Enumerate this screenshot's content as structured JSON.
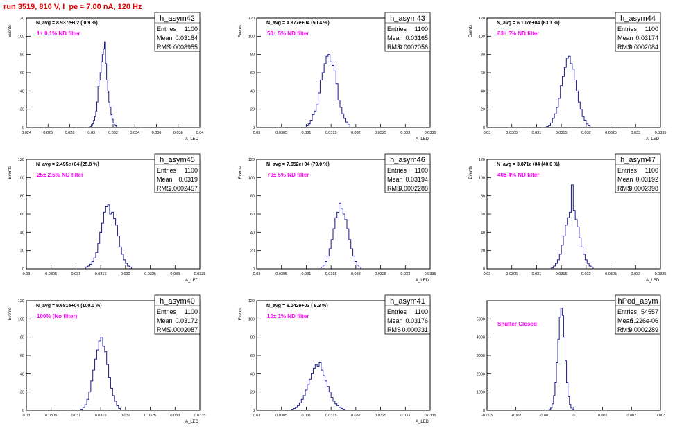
{
  "header": {
    "title": "run 3519,   810 V, I_pe ≈ 7.00 nA, 120 Hz"
  },
  "chart_data": [
    {
      "type": "histogram",
      "name": "h_asym42",
      "ylabel": "Events",
      "xlabel": "A_LED",
      "ylim": [
        0,
        120
      ],
      "yticks": [
        0,
        20,
        40,
        60,
        80,
        100,
        120
      ],
      "xlim": [
        0.024,
        0.04
      ],
      "xticks": [
        0.024,
        0.026,
        0.028,
        0.03,
        0.032,
        0.034,
        0.036,
        0.038,
        0.04
      ],
      "xticklabels": [
        "0.024",
        "0.026",
        "0.028",
        "0.03",
        "0.032",
        "0.034",
        "0.036",
        "0.038",
        "0.04"
      ],
      "stats": {
        "entries": "1100",
        "mean": "0.03184",
        "rms": "0.0008955"
      },
      "navg": "N_avg = 8.937e+02 ( 0.9 %)",
      "filter": "1± 0.1% ND filter",
      "bin_start": 0.0299,
      "bin_width": 0.0001,
      "counts": [
        1,
        2,
        4,
        8,
        12,
        18,
        28,
        45,
        52,
        60,
        72,
        80,
        86,
        94,
        70,
        52,
        40,
        28,
        22,
        14,
        9,
        5,
        3,
        2
      ]
    },
    {
      "type": "histogram",
      "name": "h_asym43",
      "ylabel": "Events",
      "xlabel": "A_LED",
      "ylim": [
        0,
        120
      ],
      "yticks": [
        0,
        20,
        40,
        60,
        80,
        100,
        120
      ],
      "xlim": [
        0.03,
        0.0335
      ],
      "xticks": [
        0.03,
        0.0305,
        0.031,
        0.0315,
        0.032,
        0.0325,
        0.033,
        0.0335
      ],
      "xticklabels": [
        "0.03",
        "0.0305",
        "0.031",
        "0.0315",
        "0.032",
        "0.0325",
        "0.033",
        "0.0335"
      ],
      "stats": {
        "entries": "1100",
        "mean": "0.03165",
        "rms": "0.0002056"
      },
      "navg": "N_avg = 4.877e+04 (50.4 %)",
      "filter": "50± 5% ND filter",
      "bin_start": 0.031,
      "bin_width": 4e-05,
      "counts": [
        2,
        4,
        8,
        14,
        18,
        25,
        38,
        52,
        60,
        70,
        78,
        80,
        72,
        68,
        62,
        48,
        30,
        22,
        15,
        10,
        6,
        3
      ]
    },
    {
      "type": "histogram",
      "name": "h_asym44",
      "ylabel": "Events",
      "xlabel": "A_LED",
      "ylim": [
        0,
        120
      ],
      "yticks": [
        0,
        20,
        40,
        60,
        80,
        100,
        120
      ],
      "xlim": [
        0.03,
        0.0335
      ],
      "xticks": [
        0.03,
        0.0305,
        0.031,
        0.0315,
        0.032,
        0.0325,
        0.033,
        0.0335
      ],
      "xticklabels": [
        "0.03",
        "0.0305",
        "0.031",
        "0.0315",
        "0.032",
        "0.0325",
        "0.033",
        "0.0335"
      ],
      "stats": {
        "entries": "1100",
        "mean": "0.03174",
        "rms": "0.0002084"
      },
      "navg": "N_avg = 6.107e+04 (63.1 %)",
      "filter": "63± 5% ND filter",
      "bin_start": 0.0312,
      "bin_width": 4e-05,
      "counts": [
        1,
        2,
        5,
        10,
        15,
        22,
        32,
        46,
        56,
        66,
        76,
        78,
        70,
        64,
        52,
        40,
        28,
        20,
        12,
        8,
        4,
        2
      ]
    },
    {
      "type": "histogram",
      "name": "h_asym45",
      "ylabel": "Events",
      "xlabel": "A_LED",
      "ylim": [
        0,
        120
      ],
      "yticks": [
        0,
        20,
        40,
        60,
        80,
        100,
        120
      ],
      "xlim": [
        0.03,
        0.0335
      ],
      "xticks": [
        0.03,
        0.0305,
        0.031,
        0.0315,
        0.032,
        0.0325,
        0.033,
        0.0335
      ],
      "xticklabels": [
        "0.03",
        "0.0305",
        "0.031",
        "0.0315",
        "0.032",
        "0.0325",
        "0.033",
        "0.0335"
      ],
      "stats": {
        "entries": "1100",
        "mean": "0.0319",
        "rms": "0.0002457"
      },
      "navg": "N_avg = 2.495e+04 (25.8 %)",
      "filter": "25± 2.5% ND filter",
      "bin_start": 0.0312,
      "bin_width": 4e-05,
      "counts": [
        2,
        3,
        5,
        8,
        12,
        18,
        28,
        40,
        50,
        62,
        68,
        70,
        60,
        62,
        55,
        48,
        36,
        24,
        16,
        10,
        6,
        3,
        2
      ]
    },
    {
      "type": "histogram",
      "name": "h_asym46",
      "ylabel": "Events",
      "xlabel": "A_LED",
      "ylim": [
        0,
        120
      ],
      "yticks": [
        0,
        20,
        40,
        60,
        80,
        100,
        120
      ],
      "xlim": [
        0.03,
        0.0335
      ],
      "xticks": [
        0.03,
        0.0305,
        0.031,
        0.0315,
        0.032,
        0.0325,
        0.033,
        0.0335
      ],
      "xticklabels": [
        "0.03",
        "0.0305",
        "0.031",
        "0.0315",
        "0.032",
        "0.0325",
        "0.033",
        "0.0335"
      ],
      "stats": {
        "entries": "1100",
        "mean": "0.03194",
        "rms": "0.0002288"
      },
      "navg": "N_avg = 7.652e+04 (79.0 %)",
      "filter": "79± 5% ND filter",
      "bin_start": 0.0313,
      "bin_width": 4e-05,
      "counts": [
        2,
        4,
        8,
        14,
        22,
        32,
        44,
        56,
        62,
        72,
        66,
        60,
        54,
        44,
        32,
        22,
        14,
        8,
        4,
        2
      ]
    },
    {
      "type": "histogram",
      "name": "h_asym47",
      "ylabel": "Events",
      "xlabel": "A_LED",
      "ylim": [
        0,
        120
      ],
      "yticks": [
        0,
        20,
        40,
        60,
        80,
        100,
        120
      ],
      "xlim": [
        0.03,
        0.0335
      ],
      "xticks": [
        0.03,
        0.0305,
        0.031,
        0.0315,
        0.032,
        0.0325,
        0.033,
        0.0335
      ],
      "xticklabels": [
        "0.03",
        "0.0305",
        "0.031",
        "0.0315",
        "0.032",
        "0.0325",
        "0.033",
        "0.0335"
      ],
      "stats": {
        "entries": "1100",
        "mean": "0.03192",
        "rms": "0.0002398"
      },
      "navg": "N_avg = 3.871e+04 (40.0 %)",
      "filter": "40± 4% ND filter",
      "bin_start": 0.0313,
      "bin_width": 4e-05,
      "counts": [
        1,
        3,
        6,
        10,
        16,
        26,
        36,
        48,
        56,
        62,
        92,
        64,
        54,
        46,
        34,
        24,
        16,
        10,
        6,
        3,
        2
      ]
    },
    {
      "type": "histogram",
      "name": "h_asym40",
      "ylabel": "Events",
      "xlabel": "A_LED",
      "ylim": [
        0,
        120
      ],
      "yticks": [
        0,
        20,
        40,
        60,
        80,
        100,
        120
      ],
      "xlim": [
        0.03,
        0.0335
      ],
      "xticks": [
        0.03,
        0.0305,
        0.031,
        0.0315,
        0.032,
        0.0325,
        0.033,
        0.0335
      ],
      "xticklabels": [
        "0.03",
        "0.0305",
        "0.031",
        "0.0315",
        "0.032",
        "0.0325",
        "0.033",
        "0.0335"
      ],
      "stats": {
        "entries": "1100",
        "mean": "0.03172",
        "rms": "0.0002087"
      },
      "navg": "N_avg = 9.681e+04 (100.0 %)",
      "filter": "100% (No filter)",
      "bin_start": 0.0311,
      "bin_width": 4e-05,
      "counts": [
        1,
        3,
        6,
        12,
        20,
        32,
        44,
        56,
        66,
        76,
        80,
        70,
        64,
        50,
        36,
        24,
        16,
        10,
        5,
        2
      ]
    },
    {
      "type": "histogram",
      "name": "h_asym41",
      "ylabel": "Events",
      "xlabel": "A_LED",
      "ylim": [
        0,
        120
      ],
      "yticks": [
        0,
        20,
        40,
        60,
        80,
        100,
        120
      ],
      "xlim": [
        0.03,
        0.0335
      ],
      "xticks": [
        0.03,
        0.0305,
        0.031,
        0.0315,
        0.032,
        0.0325,
        0.033,
        0.0335
      ],
      "xticklabels": [
        "0.03",
        "0.0305",
        "0.031",
        "0.0315",
        "0.032",
        "0.0325",
        "0.033",
        "0.0335"
      ],
      "stats": {
        "entries": "1100",
        "mean": "0.03176",
        "rms": "0.000331"
      },
      "navg": "N_avg = 9.042e+03 ( 9.3 %)",
      "filter": "10± 1% ND filter",
      "bin_start": 0.0307,
      "bin_width": 4e-05,
      "counts": [
        1,
        2,
        3,
        5,
        8,
        12,
        16,
        22,
        28,
        34,
        40,
        46,
        50,
        48,
        52,
        44,
        38,
        32,
        26,
        20,
        14,
        10,
        7,
        5,
        3,
        2,
        1
      ]
    },
    {
      "type": "histogram",
      "name": "hPed_asym",
      "ylabel": "",
      "xlabel": "",
      "ylim": [
        0,
        6000
      ],
      "yticks": [
        0,
        1000,
        2000,
        3000,
        4000,
        5000
      ],
      "xlim": [
        -0.003,
        0.003
      ],
      "xticks": [
        -0.003,
        -0.002,
        -0.001,
        0,
        0.001,
        0.002,
        0.003
      ],
      "xticklabels": [
        "-0.003",
        "-0.002",
        "-0.001",
        "0",
        "0.001",
        "0.002",
        "0.003"
      ],
      "stats": {
        "entries": "54557",
        "mean": "5.226e-06",
        "rms": "0.0002289"
      },
      "navg": "",
      "filter": "Shutter Closed",
      "bin_start": -0.0009,
      "bin_width": 5e-05,
      "counts": [
        10,
        40,
        120,
        350,
        800,
        1500,
        2600,
        3900,
        5100,
        5600,
        5200,
        4000,
        2700,
        1500,
        750,
        320,
        120,
        40,
        10
      ]
    }
  ],
  "colors": {
    "hist": "#1a1a8c",
    "title": "#e00000",
    "filter": "#ff00ff",
    "axis": "#000000"
  },
  "labels": {
    "stats_entries": "Entries",
    "stats_mean": "Mean",
    "stats_rms": "RMS"
  }
}
